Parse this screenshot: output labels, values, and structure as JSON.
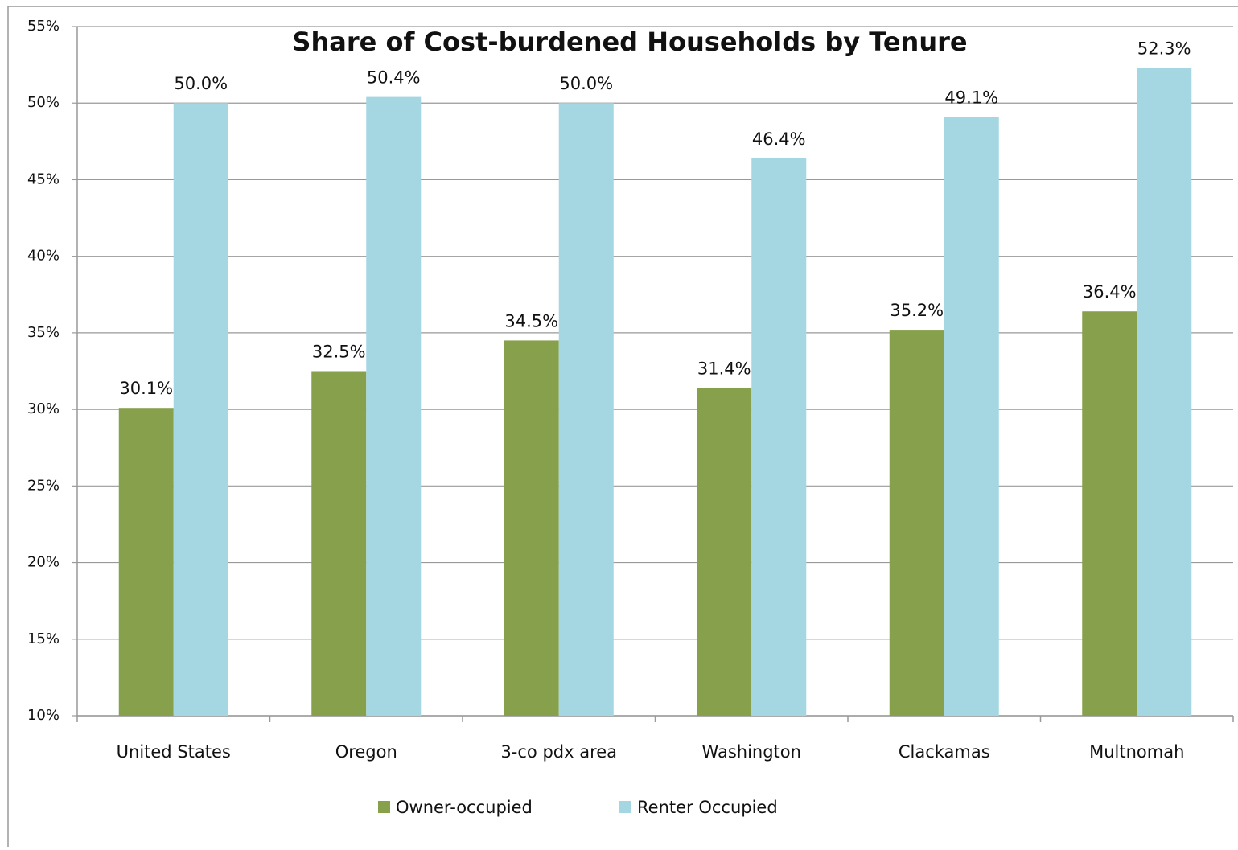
{
  "chart_data": {
    "type": "bar",
    "title": "Share of Cost-burdened Households by Tenure",
    "categories": [
      "United States",
      "Oregon",
      "3-co pdx area",
      "Washington",
      "Clackamas",
      "Multnomah"
    ],
    "series": [
      {
        "name": "Owner-occupied",
        "color": "#86a04c",
        "values": [
          30.1,
          32.5,
          34.5,
          31.4,
          35.2,
          36.4
        ],
        "value_labels": [
          "30.1%",
          "32.5%",
          "34.5%",
          "31.4%",
          "35.2%",
          "36.4%"
        ]
      },
      {
        "name": "Renter Occupied",
        "color": "#a4d7e2",
        "values": [
          50.0,
          50.4,
          50.0,
          46.4,
          49.1,
          52.3
        ],
        "value_labels": [
          "50.0%",
          "50.4%",
          "50.0%",
          "46.4%",
          "49.1%",
          "52.3%"
        ]
      }
    ],
    "ylim": [
      10,
      55
    ],
    "yticks": [
      {
        "value": 10,
        "label": "10%"
      },
      {
        "value": 15,
        "label": "15%"
      },
      {
        "value": 20,
        "label": "20%"
      },
      {
        "value": 25,
        "label": "25%"
      },
      {
        "value": 30,
        "label": "30%"
      },
      {
        "value": 35,
        "label": "35%"
      },
      {
        "value": 40,
        "label": "40%"
      },
      {
        "value": 45,
        "label": "45%"
      },
      {
        "value": 50,
        "label": "50%"
      },
      {
        "value": 55,
        "label": "55%"
      }
    ],
    "grid": true,
    "legend": "bottom"
  }
}
